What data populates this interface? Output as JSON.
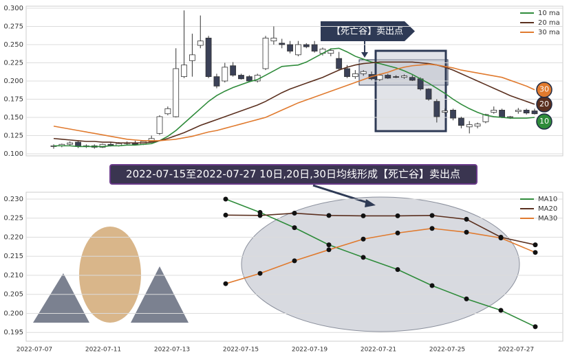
{
  "chart_data": [
    {
      "type": "candlestick",
      "open": [
        0.11,
        0.111,
        0.113,
        0.116,
        0.11,
        0.111,
        0.109,
        0.113,
        0.111,
        0.114,
        0.115,
        0.113,
        0.117,
        0.128,
        0.155,
        0.151,
        0.206,
        0.228,
        0.249,
        0.259,
        0.206,
        0.2,
        0.221,
        0.208,
        0.206,
        0.2,
        0.217,
        0.255,
        0.252,
        0.25,
        0.236,
        0.25,
        0.25,
        0.238,
        0.238,
        0.231,
        0.217,
        0.206,
        0.21,
        0.209,
        0.202,
        0.208,
        0.206,
        0.205,
        0.205,
        0.203,
        0.189,
        0.172,
        0.157,
        0.16,
        0.149,
        0.137,
        0.138,
        0.144,
        0.157,
        0.16,
        0.15,
        0.158,
        0.16,
        0.159
      ],
      "high": [
        0.113,
        0.114,
        0.117,
        0.118,
        0.113,
        0.113,
        0.114,
        0.116,
        0.116,
        0.117,
        0.118,
        0.118,
        0.125,
        0.153,
        0.165,
        0.245,
        0.297,
        0.265,
        0.29,
        0.262,
        0.21,
        0.225,
        0.226,
        0.21,
        0.208,
        0.21,
        0.262,
        0.275,
        0.258,
        0.255,
        0.255,
        0.252,
        0.255,
        0.246,
        0.245,
        0.24,
        0.222,
        0.215,
        0.215,
        0.213,
        0.21,
        0.21,
        0.208,
        0.209,
        0.208,
        0.205,
        0.19,
        0.175,
        0.162,
        0.162,
        0.151,
        0.145,
        0.143,
        0.155,
        0.165,
        0.162,
        0.152,
        0.163,
        0.162,
        0.162
      ],
      "low": [
        0.107,
        0.109,
        0.111,
        0.108,
        0.108,
        0.107,
        0.108,
        0.11,
        0.11,
        0.112,
        0.112,
        0.112,
        0.116,
        0.126,
        0.153,
        0.15,
        0.204,
        0.206,
        0.245,
        0.204,
        0.19,
        0.198,
        0.206,
        0.202,
        0.199,
        0.198,
        0.215,
        0.25,
        0.245,
        0.238,
        0.234,
        0.245,
        0.239,
        0.235,
        0.234,
        0.215,
        0.204,
        0.203,
        0.207,
        0.201,
        0.2,
        0.203,
        0.204,
        0.203,
        0.2,
        0.187,
        0.173,
        0.143,
        0.155,
        0.146,
        0.135,
        0.128,
        0.135,
        0.142,
        0.155,
        0.149,
        0.148,
        0.155,
        0.154,
        0.154
      ],
      "close": [
        0.111,
        0.113,
        0.115,
        0.11,
        0.111,
        0.109,
        0.113,
        0.111,
        0.114,
        0.115,
        0.113,
        0.117,
        0.121,
        0.151,
        0.162,
        0.217,
        0.222,
        0.236,
        0.255,
        0.206,
        0.193,
        0.219,
        0.208,
        0.203,
        0.2,
        0.208,
        0.259,
        0.259,
        0.25,
        0.241,
        0.25,
        0.247,
        0.241,
        0.244,
        0.242,
        0.217,
        0.206,
        0.21,
        0.213,
        0.203,
        0.208,
        0.204,
        0.205,
        0.207,
        0.201,
        0.189,
        0.175,
        0.151,
        0.159,
        0.149,
        0.139,
        0.14,
        0.141,
        0.154,
        0.16,
        0.15,
        0.151,
        0.16,
        0.156,
        0.155
      ],
      "up_color": "#ffffff",
      "down_color": "#3b4157",
      "series": [
        {
          "name": "10 ma",
          "color": "#2e8b3a",
          "values": [
            0.111,
            0.111,
            0.111,
            0.11,
            0.11,
            0.11,
            0.11,
            0.111,
            0.111,
            0.112,
            0.112,
            0.113,
            0.114,
            0.118,
            0.124,
            0.132,
            0.142,
            0.152,
            0.162,
            0.172,
            0.18,
            0.186,
            0.191,
            0.195,
            0.199,
            0.202,
            0.208,
            0.214,
            0.22,
            0.221,
            0.222,
            0.226,
            0.232,
            0.238,
            0.244,
            0.245,
            0.24,
            0.234,
            0.23,
            0.226,
            0.224,
            0.221,
            0.218,
            0.214,
            0.209,
            0.203,
            0.197,
            0.19,
            0.183,
            0.175,
            0.168,
            0.162,
            0.157,
            0.153,
            0.151,
            0.15,
            0.149,
            0.149,
            0.149,
            0.15
          ]
        },
        {
          "name": "20 ma",
          "color": "#5a2f1e",
          "values": [
            0.121,
            0.12,
            0.119,
            0.118,
            0.117,
            0.117,
            0.116,
            0.116,
            0.115,
            0.115,
            0.115,
            0.115,
            0.116,
            0.118,
            0.121,
            0.125,
            0.129,
            0.134,
            0.139,
            0.143,
            0.147,
            0.151,
            0.155,
            0.159,
            0.163,
            0.167,
            0.172,
            0.178,
            0.184,
            0.189,
            0.193,
            0.197,
            0.201,
            0.205,
            0.21,
            0.215,
            0.219,
            0.222,
            0.224,
            0.225,
            0.226,
            0.226,
            0.226,
            0.226,
            0.226,
            0.225,
            0.224,
            0.222,
            0.219,
            0.215,
            0.21,
            0.205,
            0.2,
            0.195,
            0.19,
            0.185,
            0.18,
            0.176,
            0.172,
            0.168
          ]
        },
        {
          "name": "30 ma",
          "color": "#e07a2e",
          "values": [
            0.138,
            0.136,
            0.134,
            0.132,
            0.13,
            0.128,
            0.126,
            0.124,
            0.122,
            0.12,
            0.119,
            0.118,
            0.118,
            0.118,
            0.119,
            0.12,
            0.122,
            0.124,
            0.127,
            0.13,
            0.132,
            0.135,
            0.138,
            0.141,
            0.144,
            0.147,
            0.15,
            0.155,
            0.16,
            0.165,
            0.17,
            0.174,
            0.178,
            0.182,
            0.186,
            0.19,
            0.194,
            0.198,
            0.202,
            0.206,
            0.209,
            0.212,
            0.216,
            0.219,
            0.221,
            0.222,
            0.223,
            0.222,
            0.22,
            0.218,
            0.215,
            0.213,
            0.211,
            0.209,
            0.207,
            0.205,
            0.201,
            0.197,
            0.193,
            0.188
          ]
        }
      ],
      "end_labels": [
        "10",
        "20",
        "30"
      ],
      "annotation": "【死亡谷】卖出点",
      "ylim": [
        0.0972,
        0.3028
      ],
      "yticks": [
        {
          "value": 0.1,
          "label": "0.100"
        },
        0.125,
        {
          "value": 0.15,
          "label": "0.150"
        },
        0.175,
        {
          "value": 0.2,
          "label": "0.200"
        },
        0.225,
        {
          "value": 0.25,
          "label": "0.250"
        },
        0.275,
        {
          "value": 0.3,
          "label": "0.300"
        }
      ],
      "grid": true,
      "legend": "upper right"
    },
    {
      "type": "line",
      "title": "2022-07-15至2022-07-27 10日,20日,30日均线形成【死亡谷】卖出点",
      "categories": [
        "2022-07-07",
        null,
        "2022-07-11",
        null,
        "2022-07-13",
        null,
        "2022-07-15",
        null,
        "2022-07-19",
        null,
        "2022-07-21",
        null,
        "2022-07-25",
        null,
        "2022-07-27"
      ],
      "series": [
        {
          "name": "MA10",
          "color": "#2e8b3a",
          "values": [
            null,
            null,
            null,
            null,
            null,
            0.23,
            0.2265,
            0.2225,
            0.218,
            0.2147,
            0.2115,
            0.2073,
            0.2038,
            0.2008,
            0.1965
          ]
        },
        {
          "name": "MA20",
          "color": "#5a2f1e",
          "values": [
            null,
            null,
            null,
            null,
            null,
            0.2258,
            0.2257,
            0.2263,
            0.2257,
            0.2256,
            0.2256,
            0.2257,
            0.2247,
            0.22,
            0.218
          ]
        },
        {
          "name": "MA30",
          "color": "#e07a2e",
          "values": [
            null,
            null,
            null,
            null,
            null,
            0.2078,
            0.2105,
            0.2138,
            0.2167,
            0.2195,
            0.2211,
            0.2223,
            0.2213,
            0.2198,
            0.216
          ]
        }
      ],
      "ylim": [
        0.1927,
        0.2318
      ],
      "yticks": [
        0.195,
        {
          "value": 0.2,
          "label": "0.200"
        },
        0.205,
        {
          "value": 0.21,
          "label": "0.210"
        },
        0.215,
        {
          "value": 0.22,
          "label": "0.220"
        },
        0.225,
        {
          "value": 0.23,
          "label": "0.230"
        }
      ],
      "grid": true,
      "markers": true,
      "legend": "upper right"
    }
  ]
}
